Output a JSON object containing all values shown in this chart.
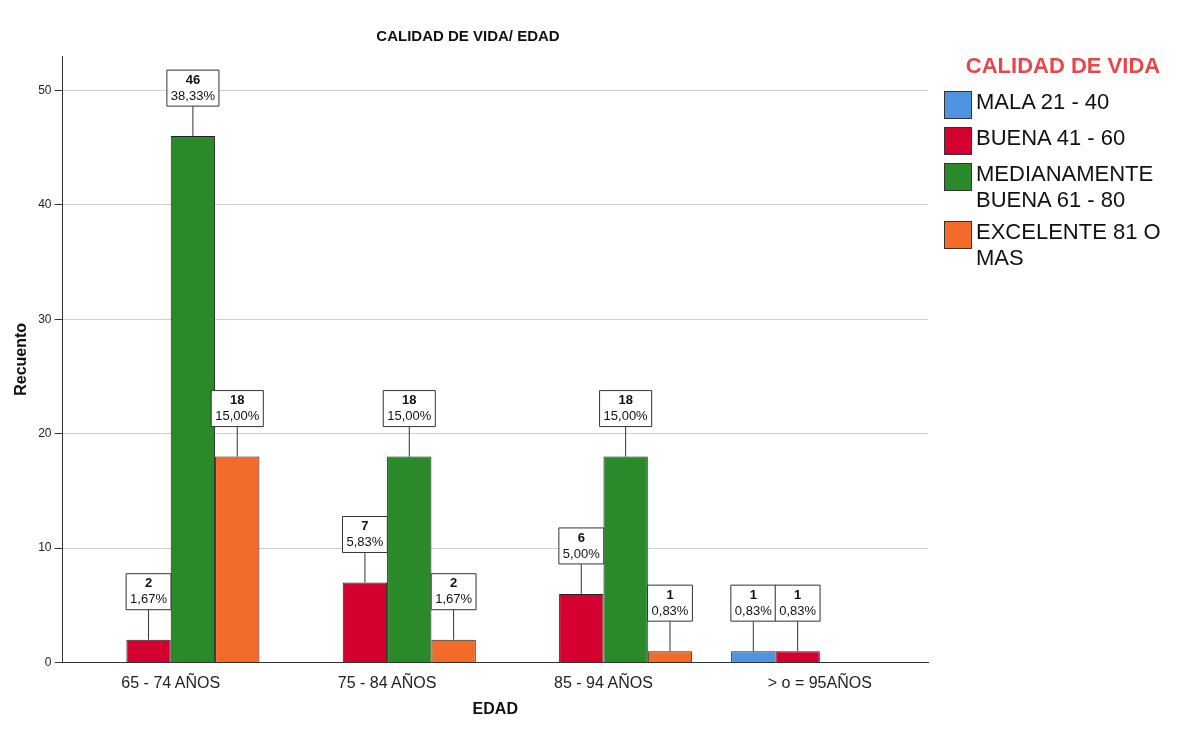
{
  "chart_data": {
    "type": "bar",
    "title": "CALIDAD DE VIDA/ EDAD",
    "xlabel": "EDAD",
    "ylabel": "Recuento",
    "legend_title": "CALIDAD DE VIDA",
    "categories": [
      "65 - 74 AÑOS",
      "75 - 84 AÑOS",
      "85 - 94 AÑOS",
      "> o = 95AÑOS"
    ],
    "series": [
      {
        "name": "MALA 21 - 40",
        "color": "#4f94e0",
        "values": [
          null,
          null,
          null,
          1
        ],
        "value_labels": [
          null,
          null,
          null,
          "1\n0,83%"
        ]
      },
      {
        "name": "BUENA 41 - 60",
        "color": "#d4002f",
        "values": [
          2,
          7,
          6,
          1
        ],
        "value_labels": [
          "2\n1,67%",
          "7\n5,83%",
          "6\n5,00%",
          "1\n0,83%"
        ]
      },
      {
        "name": "MEDIANAMENTE BUENA 61 - 80",
        "color": "#2a8a2a",
        "values": [
          46,
          18,
          18,
          null
        ],
        "value_labels": [
          "46\n38,33%",
          "18\n15,00%",
          "18\n15,00%",
          null
        ]
      },
      {
        "name": "EXCELENTE 81 O MAS",
        "color": "#f26b2b",
        "values": [
          18,
          2,
          1,
          null
        ],
        "value_labels": [
          "18\n15,00%",
          "2\n1,67%",
          "1\n0,83%",
          null
        ]
      }
    ],
    "ylim": [
      0,
      53
    ],
    "yticks": [
      0,
      10,
      20,
      30,
      40,
      50
    ],
    "grid": "y",
    "legend": "top right"
  }
}
